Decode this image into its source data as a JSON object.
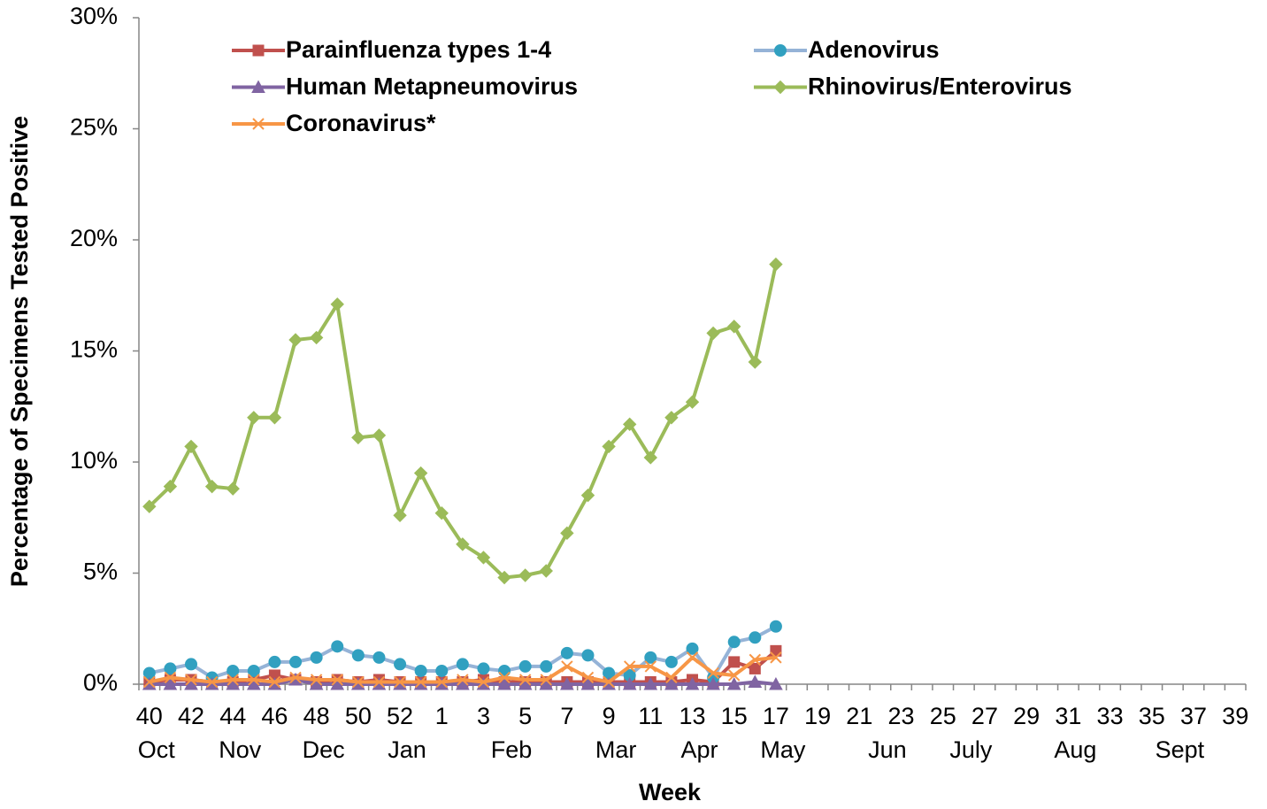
{
  "chart_data": {
    "type": "line",
    "ylabel": "Percentage of Specimens Tested Positive",
    "xlabel": "Week",
    "categories": [
      "40",
      null,
      "42",
      null,
      "44",
      null,
      "46",
      null,
      "48",
      null,
      "50",
      null,
      "52",
      null,
      "1",
      null,
      "3",
      null,
      "5",
      null,
      "7",
      null,
      "9",
      null,
      "11",
      null,
      "13",
      null,
      "15",
      null,
      "17",
      null,
      "19",
      null,
      "21",
      null,
      "23",
      null,
      "25",
      null,
      "27",
      null,
      "29",
      null,
      "31",
      null,
      "33",
      null,
      "35",
      null,
      "37",
      null,
      "39"
    ],
    "month_categories": [
      "Oct",
      null,
      null,
      null,
      "Nov",
      null,
      null,
      null,
      "Dec",
      null,
      null,
      null,
      "Jan",
      null,
      null,
      null,
      null,
      "Feb",
      null,
      null,
      null,
      null,
      "Mar",
      null,
      null,
      null,
      "Apr",
      null,
      null,
      null,
      "May",
      null,
      null,
      null,
      null,
      "Jun",
      null,
      null,
      null,
      "July",
      null,
      null,
      null,
      null,
      "Aug",
      null,
      null,
      null,
      null,
      "Sept",
      null,
      null,
      null,
      null
    ],
    "ylim": [
      0,
      30
    ],
    "yticks": [
      {
        "value": 0,
        "label": "0%"
      },
      {
        "value": 5,
        "label": "5%"
      },
      {
        "value": 10,
        "label": "10%"
      },
      {
        "value": 15,
        "label": "15%"
      },
      {
        "value": 20,
        "label": "20%"
      },
      {
        "value": 25,
        "label": "25%"
      },
      {
        "value": 30,
        "label": "30%"
      }
    ],
    "series": [
      {
        "name": "Parainfluenza types 1-4",
        "color": "#c0504d",
        "marker_color": "#c0504d",
        "marker": "square",
        "values": [
          0.1,
          0.2,
          0.2,
          0.1,
          0.1,
          0.2,
          0.4,
          0.2,
          0.1,
          0.2,
          0.1,
          0.2,
          0.1,
          0.1,
          0.1,
          0.1,
          0.2,
          0.1,
          0.1,
          0.1,
          0.1,
          0.1,
          0.1,
          0.1,
          0.1,
          0.1,
          0.2,
          0.1,
          1.0,
          0.7,
          1.5,
          null,
          null,
          null,
          null,
          null,
          null,
          null,
          null,
          null,
          null,
          null,
          null,
          null,
          null,
          null,
          null,
          null,
          null,
          null,
          null,
          null,
          null
        ]
      },
      {
        "name": "Adenovirus",
        "color": "#95b3d7",
        "marker_color": "#31a0c0",
        "marker": "circle",
        "values": [
          0.5,
          0.7,
          0.9,
          0.3,
          0.6,
          0.6,
          1.0,
          1.0,
          1.2,
          1.7,
          1.3,
          1.2,
          0.9,
          0.6,
          0.6,
          0.9,
          0.7,
          0.6,
          0.8,
          0.8,
          1.4,
          1.3,
          0.5,
          0.4,
          1.2,
          1.0,
          1.6,
          0.3,
          1.9,
          2.1,
          2.6,
          null,
          null,
          null,
          null,
          null,
          null,
          null,
          null,
          null,
          null,
          null,
          null,
          null,
          null,
          null,
          null,
          null,
          null,
          null,
          null,
          null,
          null
        ]
      },
      {
        "name": "Human Metapneumovirus",
        "color": "#8064a2",
        "marker_color": "#8064a2",
        "marker": "triangle",
        "values": [
          0,
          0,
          0,
          0,
          0,
          0,
          0,
          0.2,
          0,
          0,
          0,
          0,
          0,
          0,
          0,
          0,
          0,
          0,
          0,
          0,
          0,
          0,
          0,
          0,
          0,
          0,
          0,
          0,
          0,
          0.1,
          0,
          null,
          null,
          null,
          null,
          null,
          null,
          null,
          null,
          null,
          null,
          null,
          null,
          null,
          null,
          null,
          null,
          null,
          null,
          null,
          null,
          null,
          null
        ]
      },
      {
        "name": "Rhinovirus/Enterovirus",
        "color": "#9bbb59",
        "marker_color": "#9bbb59",
        "marker": "diamond",
        "values": [
          8.0,
          8.9,
          10.7,
          8.9,
          8.8,
          12.0,
          12.0,
          15.5,
          15.6,
          17.1,
          11.1,
          11.2,
          7.6,
          9.5,
          7.7,
          6.3,
          5.7,
          4.8,
          4.9,
          5.1,
          6.8,
          8.5,
          10.7,
          11.7,
          10.2,
          12.0,
          12.7,
          15.8,
          16.1,
          14.5,
          18.9,
          null,
          null,
          null,
          null,
          null,
          null,
          null,
          null,
          null,
          null,
          null,
          null,
          null,
          null,
          null,
          null,
          null,
          null,
          null,
          null,
          null,
          null
        ]
      },
      {
        "name": "Coronavirus*",
        "color": "#f79646",
        "marker_color": "#f79646",
        "marker": "x",
        "values": [
          0.1,
          0.3,
          0.2,
          0.1,
          0.2,
          0.2,
          0.1,
          0.3,
          0.2,
          0.2,
          0.1,
          0.1,
          0.1,
          0.1,
          0.1,
          0.2,
          0.1,
          0.3,
          0.2,
          0.2,
          0.8,
          0.3,
          0.1,
          0.8,
          0.8,
          0.3,
          1.2,
          0.5,
          0.4,
          1.1,
          1.2,
          null,
          null,
          null,
          null,
          null,
          null,
          null,
          null,
          null,
          null,
          null,
          null,
          null,
          null,
          null,
          null,
          null,
          null,
          null,
          null,
          null,
          null
        ]
      }
    ]
  }
}
